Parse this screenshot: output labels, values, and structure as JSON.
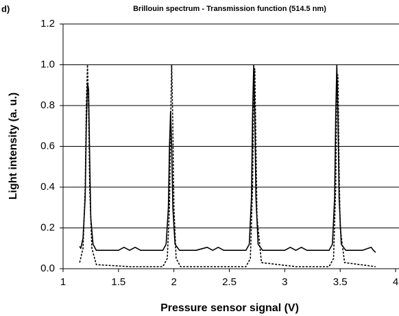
{
  "chart_data": {
    "type": "line",
    "panel_label": "d)",
    "title": "Brillouin spectrum - Transmission function (514.5 nm)",
    "x_label": "Pressure sensor signal (V)",
    "y_label": "Light intensity (a. u.)",
    "xlim": [
      1,
      4
    ],
    "xticks": [
      1,
      1.5,
      2,
      2.5,
      3,
      3.5,
      4
    ],
    "ylim": [
      0,
      1.2
    ],
    "yticks": [
      {
        "value": 0,
        "label": "0.0"
      },
      {
        "value": 0.2,
        "label": "0.2"
      },
      {
        "value": 0.4,
        "label": "0.4"
      },
      {
        "value": 0.6,
        "label": "0.6"
      },
      {
        "value": 0.8,
        "label": "0.8"
      },
      {
        "value": 1,
        "label": "1.0"
      },
      {
        "value": 1.2,
        "label": "1.2"
      }
    ],
    "grid": true,
    "series": [
      {
        "color": "#000000",
        "dashed": false,
        "x": [
          1.15,
          1.16,
          1.18,
          1.2,
          1.21,
          1.22,
          1.23,
          1.24,
          1.25,
          1.27,
          1.3,
          1.4,
          1.5,
          1.55,
          1.6,
          1.65,
          1.7,
          1.8,
          1.9,
          1.93,
          1.95,
          1.96,
          1.97,
          1.98,
          1.99,
          2.01,
          2.05,
          2.2,
          2.3,
          2.35,
          2.4,
          2.45,
          2.55,
          2.65,
          2.68,
          2.7,
          2.71,
          2.72,
          2.73,
          2.74,
          2.76,
          2.8,
          2.9,
          3.0,
          3.05,
          3.1,
          3.15,
          3.2,
          3.3,
          3.4,
          3.43,
          3.45,
          3.46,
          3.47,
          3.48,
          3.49,
          3.51,
          3.55,
          3.7,
          3.78,
          3.8,
          3.82
        ],
        "values": [
          0.11,
          0.1,
          0.15,
          0.35,
          0.7,
          0.91,
          0.88,
          0.55,
          0.25,
          0.12,
          0.09,
          0.09,
          0.09,
          0.105,
          0.09,
          0.105,
          0.09,
          0.09,
          0.09,
          0.12,
          0.3,
          0.6,
          0.77,
          0.6,
          0.3,
          0.12,
          0.09,
          0.09,
          0.105,
          0.09,
          0.105,
          0.09,
          0.09,
          0.09,
          0.12,
          0.35,
          0.75,
          1.0,
          0.75,
          0.35,
          0.12,
          0.09,
          0.09,
          0.09,
          0.105,
          0.09,
          0.105,
          0.09,
          0.09,
          0.09,
          0.12,
          0.35,
          0.75,
          1.0,
          0.75,
          0.35,
          0.12,
          0.09,
          0.09,
          0.105,
          0.09,
          0.08
        ]
      },
      {
        "color": "#000000",
        "dashed": true,
        "x": [
          1.15,
          1.18,
          1.2,
          1.21,
          1.22,
          1.23,
          1.24,
          1.26,
          1.3,
          1.6,
          1.9,
          1.94,
          1.96,
          1.97,
          1.98,
          1.99,
          2.0,
          2.02,
          2.06,
          2.4,
          2.65,
          2.69,
          2.71,
          2.72,
          2.73,
          2.74,
          2.75,
          2.79,
          3.1,
          3.4,
          3.44,
          3.46,
          3.47,
          3.48,
          3.49,
          3.5,
          3.54,
          3.82
        ],
        "values": [
          0.03,
          0.1,
          0.4,
          0.8,
          1.0,
          0.8,
          0.4,
          0.1,
          0.02,
          0.01,
          0.01,
          0.05,
          0.3,
          0.7,
          1.0,
          0.7,
          0.3,
          0.05,
          0.01,
          0.01,
          0.01,
          0.05,
          0.4,
          0.9,
          0.98,
          0.6,
          0.25,
          0.03,
          0.01,
          0.01,
          0.05,
          0.4,
          0.95,
          0.95,
          0.5,
          0.2,
          0.03,
          0.01
        ]
      }
    ]
  }
}
